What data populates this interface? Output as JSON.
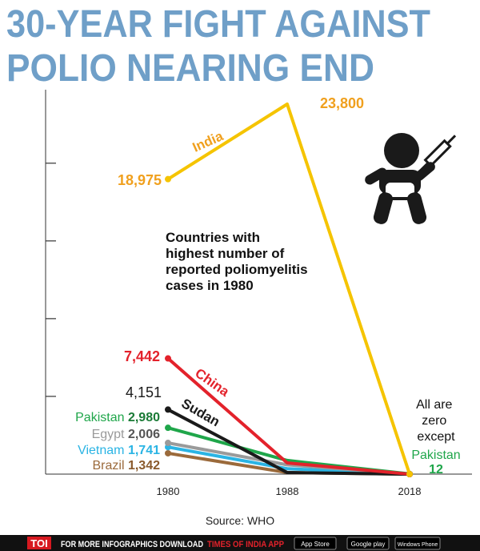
{
  "chart_data": {
    "type": "line",
    "title": [
      "30-YEAR FIGHT AGAINST",
      "POLIO NEARING END"
    ],
    "subtitle": "Countries with highest number of reported poliomyelitis cases in 1980",
    "annotation": "All are zero except",
    "source": "Source: WHO",
    "categories": [
      "1980",
      "1988",
      "2018"
    ],
    "ylim": [
      0,
      23800
    ],
    "yticks": [
      5000,
      10000,
      15000,
      20000
    ],
    "series": [
      {
        "name": "India",
        "color": "#f5c400",
        "values": [
          18975,
          23800,
          0
        ],
        "value_labels": [
          "18,975",
          "23,800",
          null
        ]
      },
      {
        "name": "China",
        "color": "#e3222b",
        "values": [
          7442,
          720,
          0
        ],
        "value_labels": [
          "7,442",
          null,
          null
        ]
      },
      {
        "name": "Sudan",
        "color": "#1a1a1a",
        "values": [
          4151,
          100,
          0
        ],
        "value_labels": [
          "4,151",
          null,
          null
        ]
      },
      {
        "name": "Pakistan",
        "color": "#1fa64a",
        "values": [
          2980,
          880,
          12
        ],
        "value_labels": [
          "2,980",
          null,
          "12"
        ]
      },
      {
        "name": "Egypt",
        "color": "#9a9a9a",
        "values": [
          2006,
          600,
          0
        ],
        "value_labels": [
          "2,006",
          null,
          null
        ]
      },
      {
        "name": "Vietnam",
        "color": "#2ab4e4",
        "values": [
          1741,
          350,
          0
        ],
        "value_labels": [
          "1,741",
          null,
          null
        ]
      },
      {
        "name": "Brazil",
        "color": "#9b6a3b",
        "values": [
          1342,
          100,
          0
        ],
        "value_labels": [
          "1,342",
          null,
          null
        ]
      }
    ]
  },
  "footer": {
    "brand": "TOI",
    "text": "FOR MORE INFOGRAPHICS DOWNLOAD",
    "app": "TIMES OF INDIA APP",
    "badges": [
      "App Store",
      "Google play",
      "Windows Phone"
    ]
  }
}
